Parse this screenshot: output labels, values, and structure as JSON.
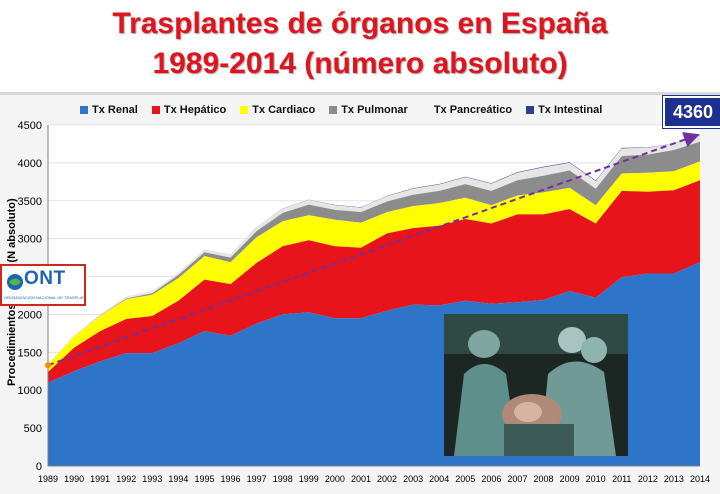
{
  "title": {
    "line1": "Trasplantes de órganos en España",
    "line2": "1989-2014 (número absoluto)"
  },
  "badge": "4360",
  "logo": {
    "text": "ONT",
    "subtitle": "ORGANIZACIÓN NACIONAL DE TRASPLANTES"
  },
  "colors": {
    "renal": "#2e75c9",
    "hepatico": "#e8141c",
    "cardiaco": "#ffff00",
    "pulmonar": "#8c8c8c",
    "pancreatico": "#e6e6e6",
    "intestinal": "#2c3e8f",
    "trend": "#7030a0",
    "title": "#e0141e"
  },
  "chart_data": {
    "type": "area",
    "stacked": true,
    "ylabel": "Procedimientos de ...te (N absoluto)",
    "ylim": [
      0,
      4500
    ],
    "yticks": [
      0,
      500,
      1000,
      1500,
      2000,
      2500,
      3000,
      3500,
      4000,
      4500
    ],
    "x": [
      "1989",
      "1990",
      "1991",
      "1992",
      "1993",
      "1994",
      "1995",
      "1996",
      "1997",
      "1998",
      "1999",
      "2000",
      "2001",
      "2002",
      "2003",
      "2004",
      "2005",
      "2006",
      "2007",
      "2008",
      "2009",
      "2010",
      "2011",
      "2012",
      "2013",
      "2014"
    ],
    "series": [
      {
        "name": "Tx Renal",
        "color": "#2e75c9",
        "values": [
          1100,
          1250,
          1380,
          1490,
          1490,
          1620,
          1780,
          1720,
          1880,
          2000,
          2030,
          1950,
          1950,
          2050,
          2130,
          2120,
          2180,
          2140,
          2160,
          2190,
          2310,
          2220,
          2490,
          2540,
          2540,
          2690
        ]
      },
      {
        "name": "Tx Hepático",
        "color": "#e8141c",
        "values": [
          140,
          310,
          400,
          450,
          490,
          560,
          680,
          680,
          800,
          900,
          950,
          950,
          930,
          1020,
          1010,
          1050,
          1080,
          1060,
          1160,
          1130,
          1080,
          980,
          1140,
          1080,
          1100,
          1080
        ]
      },
      {
        "name": "Tx Cardiaco",
        "color": "#ffff00",
        "values": [
          100,
          150,
          200,
          260,
          280,
          300,
          310,
          290,
          340,
          330,
          330,
          350,
          330,
          280,
          290,
          300,
          280,
          240,
          250,
          290,
          280,
          240,
          230,
          250,
          250,
          250
        ]
      },
      {
        "name": "Tx Pulmonar",
        "color": "#8c8c8c",
        "values": [
          0,
          0,
          5,
          10,
          20,
          40,
          50,
          60,
          80,
          110,
          140,
          130,
          140,
          140,
          150,
          160,
          180,
          190,
          200,
          220,
          230,
          220,
          230,
          240,
          280,
          260
        ]
      },
      {
        "name": "Tx Pancreático",
        "color": "#e6e6e6",
        "values": [
          10,
          15,
          20,
          25,
          30,
          35,
          40,
          45,
          50,
          55,
          60,
          60,
          60,
          70,
          80,
          85,
          90,
          95,
          100,
          110,
          100,
          100,
          100,
          90,
          80,
          80
        ]
      },
      {
        "name": "Tx Intestinal",
        "color": "#2c3e8f",
        "values": [
          0,
          0,
          0,
          0,
          0,
          0,
          0,
          0,
          2,
          3,
          4,
          5,
          5,
          5,
          6,
          7,
          8,
          7,
          8,
          9,
          8,
          8,
          8,
          5,
          5,
          6
        ]
      }
    ],
    "trend": {
      "from_year": "1989",
      "from_value": 1330,
      "to_year": "2014",
      "to_value": 4360
    }
  }
}
